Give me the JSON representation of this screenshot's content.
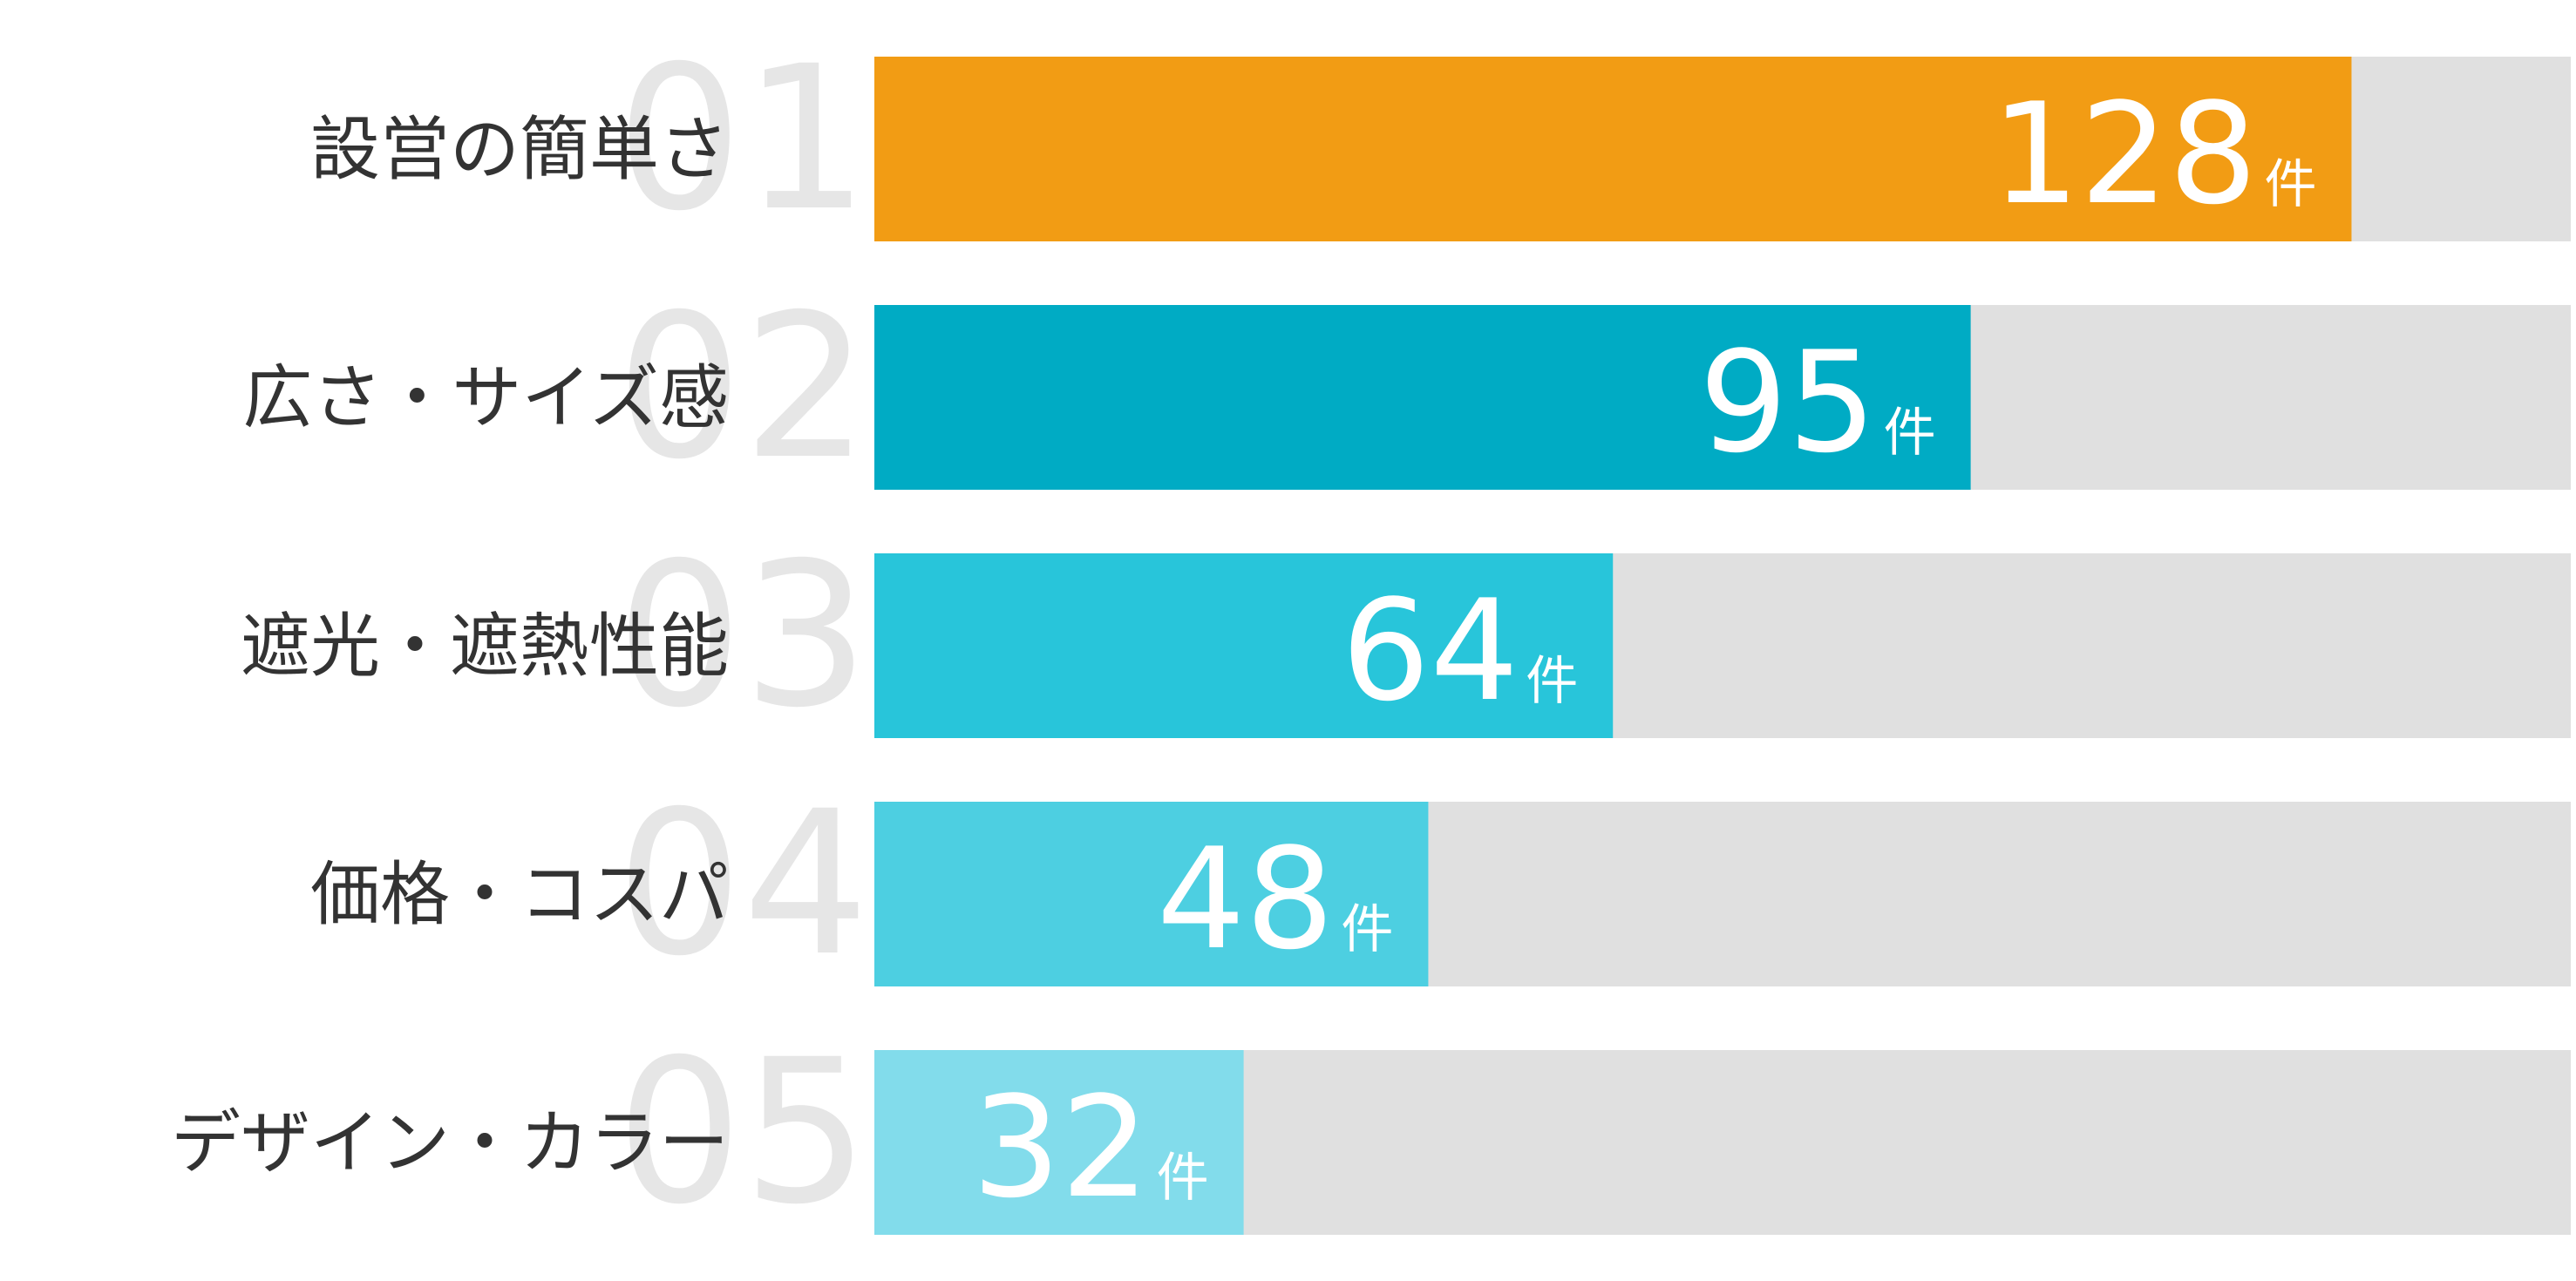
{
  "chart_data": {
    "type": "bar",
    "categories": [
      "設営の簡単さ",
      "広さ・サイズ感",
      "遮光・遮熱性能",
      "価格・コスパ",
      "デザイン・カラー"
    ],
    "ranks": [
      "01",
      "02",
      "03",
      "04",
      "05"
    ],
    "values": [
      128,
      95,
      64,
      48,
      32
    ],
    "unit": "件",
    "colors": [
      "#f29c14",
      "#00abc4",
      "#28c5da",
      "#4dcfe1",
      "#82dceb"
    ],
    "track_color": "#e0e0e0",
    "xlim": [
      0,
      147
    ]
  }
}
